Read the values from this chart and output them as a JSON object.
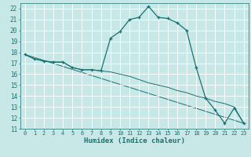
{
  "xlabel": "Humidex (Indice chaleur)",
  "background_color": "#c8e8e8",
  "grid_color": "#ffffff",
  "line_color": "#1a7070",
  "xlim": [
    -0.5,
    23.5
  ],
  "ylim": [
    11,
    22.5
  ],
  "yticks": [
    11,
    12,
    13,
    14,
    15,
    16,
    17,
    18,
    19,
    20,
    21,
    22
  ],
  "xticks": [
    0,
    1,
    2,
    3,
    4,
    5,
    6,
    7,
    8,
    9,
    10,
    11,
    12,
    13,
    14,
    15,
    16,
    17,
    18,
    19,
    20,
    21,
    22,
    23
  ],
  "curve1_x": [
    0,
    1,
    2,
    3,
    4,
    5,
    6,
    7,
    8,
    9,
    10,
    11,
    12,
    13,
    14,
    15,
    16,
    17,
    18,
    19,
    20,
    21,
    22,
    23
  ],
  "curve1_y": [
    17.8,
    17.4,
    17.2,
    17.1,
    17.1,
    16.6,
    16.4,
    16.4,
    16.3,
    19.3,
    19.9,
    21.0,
    21.2,
    22.2,
    21.2,
    21.1,
    20.7,
    20.0,
    16.6,
    13.8,
    12.7,
    11.5,
    12.9,
    11.5
  ],
  "curve2_x": [
    0,
    1,
    2,
    3,
    4,
    5,
    6,
    7,
    8,
    9,
    10,
    11,
    12,
    13,
    14,
    15,
    16,
    17,
    18,
    19,
    20,
    21,
    22,
    23
  ],
  "curve2_y": [
    17.8,
    17.4,
    17.2,
    17.1,
    17.1,
    16.6,
    16.4,
    16.4,
    16.3,
    16.2,
    16.0,
    15.8,
    15.5,
    15.2,
    15.0,
    14.8,
    14.5,
    14.3,
    14.0,
    13.8,
    13.5,
    13.3,
    13.0,
    11.5
  ],
  "curve3_x": [
    0,
    23
  ],
  "curve3_y": [
    17.8,
    11.5
  ]
}
